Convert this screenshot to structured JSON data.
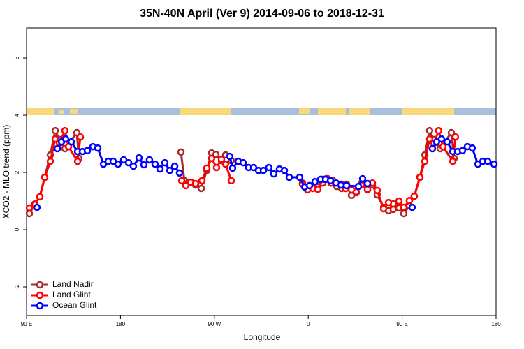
{
  "chart_data": {
    "type": "line",
    "title": "35N-40N April (Ver 9)   2014-09-06 to 2018-12-31",
    "x_label": "Longitude",
    "y_label": "XCO2 - MLO trend (ppm)",
    "xlim": [
      90,
      540
    ],
    "xticks": [
      {
        "value": 90,
        "label": "90 E"
      },
      180,
      {
        "value": 270,
        "label": "90 W"
      },
      {
        "value": 360,
        "label": "0"
      },
      {
        "value": 450,
        "label": "90 E"
      },
      {
        "value": 540,
        "label": "180"
      }
    ],
    "ylim": [
      -3,
      7.05
    ],
    "yticks": [
      -2,
      0,
      2,
      4,
      6
    ],
    "legend": "bottom-left",
    "series": [
      {
        "name": "Land Nadir",
        "color": "#a52a2a",
        "x": [
          92.7,
          98,
          102.7,
          107.4,
          112.8,
          117.5,
          121.5,
          126.8,
          138.2,
          140.2,
          null,
          238,
          241.3,
          245.3,
          252,
          257.4,
          262.8,
          267.4,
          271.5,
          276.8,
          280.8,
          286.2,
          null,
          354.5,
          359.2,
          363.9,
          369.2,
          373.9,
          378.6,
          383.3,
          387.3,
          392,
          396.7,
          401.4,
          406,
          411.4,
          416.8,
          421.5,
          426.1,
          432.2,
          436.9,
          441.5,
          446.9,
          451.6,
          456.9,
          461.6,
          467,
          471.7,
          476.3,
          480.4,
          486.4,
          497.1,
          499.8
        ],
        "values": [
          0.56,
          0.9,
          1.15,
          1.83,
          2.61,
          3.46,
          3.15,
          2.83,
          3.39,
          2.49,
          null,
          2.71,
          1.71,
          1.66,
          1.56,
          1.44,
          2.07,
          2.68,
          2.63,
          2.41,
          2.61,
          2.41,
          null,
          1.63,
          1.41,
          1.49,
          1.49,
          1.63,
          1.78,
          1.73,
          1.51,
          1.44,
          1.59,
          1.2,
          1.29,
          1.63,
          1.39,
          1.56,
          1.22,
          0.78,
          0.66,
          0.9,
          0.76,
          0.56,
          0.83,
          1.17,
          1.83,
          2.61,
          3.46,
          3.15,
          2.83,
          3.39,
          2.49
        ]
      },
      {
        "name": "Land Glint",
        "color": "#ff0000",
        "x": [
          92.7,
          98,
          102.7,
          107.4,
          112.8,
          117.5,
          121.5,
          126.8,
          130.2,
          138.9,
          141.6,
          null,
          238.7,
          242.7,
          247.4,
          252,
          258.1,
          262.8,
          267.4,
          272.1,
          276.8,
          280.8,
          286.2,
          null,
          354.5,
          359.2,
          364.5,
          369.2,
          373.9,
          377.3,
          381.9,
          386.6,
          391.3,
          396,
          401.4,
          406,
          410.7,
          416.8,
          421.5,
          426.1,
          432.2,
          436.9,
          441.5,
          446.9,
          451.6,
          456.9,
          461.6,
          467,
          471.7,
          476.3,
          480.4,
          485,
          489.1,
          498.5,
          501.1
        ],
        "values": [
          0.76,
          0.88,
          1.15,
          1.83,
          2.39,
          3.17,
          3.02,
          3.46,
          2.9,
          2.39,
          3.24,
          null,
          1.71,
          1.54,
          1.66,
          1.61,
          1.71,
          2.15,
          2.49,
          2.17,
          2.46,
          2.29,
          1.71,
          null,
          1.59,
          1.39,
          1.44,
          1.41,
          1.76,
          1.78,
          1.63,
          1.63,
          1.59,
          1.44,
          1.39,
          1.32,
          1.56,
          1.41,
          1.63,
          1.37,
          0.73,
          0.95,
          0.71,
          1.0,
          0.78,
          1.02,
          1.17,
          1.83,
          2.39,
          3.17,
          3.02,
          3.46,
          2.9,
          2.39,
          3.24
        ]
      },
      {
        "name": "Ocean Glint",
        "color": "#0000ff",
        "x": [
          100,
          null,
          119.5,
          123.5,
          127.5,
          132.9,
          138.9,
          143.6,
          148.3,
          153.6,
          158.3,
          163.7,
          168.3,
          173,
          177.7,
          183.1,
          187.8,
          192.4,
          197.8,
          202.5,
          207.8,
          213.2,
          217.9,
          222.6,
          227.3,
          232,
          236.6,
          null,
          284.8,
          287.5,
          292.9,
          297.6,
          302.9,
          307.6,
          312.3,
          317,
          322.3,
          327,
          332.4,
          337.1,
          341.8,
          351.8,
          356.5,
          361.2,
          366.5,
          371.9,
          376.6,
          381.3,
          386.6,
          391.3,
          396.7,
          408.1,
          412.1,
          416.8,
          null,
          459.6,
          null,
          479,
          483,
          487.7,
          493.1,
          498.5,
          503.1,
          507.8,
          512.5,
          517.2,
          522.6,
          527.3,
          532,
          538
        ],
        "values": [
          0.78,
          null,
          2.83,
          3.07,
          3.17,
          3.07,
          2.73,
          2.73,
          2.76,
          2.9,
          2.85,
          2.29,
          2.39,
          2.39,
          2.29,
          2.44,
          2.34,
          2.22,
          2.51,
          2.27,
          2.44,
          2.29,
          2.12,
          2.34,
          2.07,
          2.22,
          1.98,
          null,
          2.56,
          2.15,
          2.39,
          2.34,
          2.17,
          2.17,
          2.07,
          2.07,
          2.17,
          1.95,
          2.12,
          2.07,
          1.83,
          1.83,
          1.49,
          1.54,
          1.68,
          1.76,
          1.76,
          1.71,
          1.63,
          1.56,
          1.54,
          1.51,
          1.78,
          1.61,
          null,
          0.78,
          null,
          2.83,
          3.07,
          3.17,
          3.07,
          2.73,
          2.73,
          2.76,
          2.9,
          2.85,
          2.29,
          2.39,
          2.39,
          2.29
        ]
      }
    ]
  }
}
